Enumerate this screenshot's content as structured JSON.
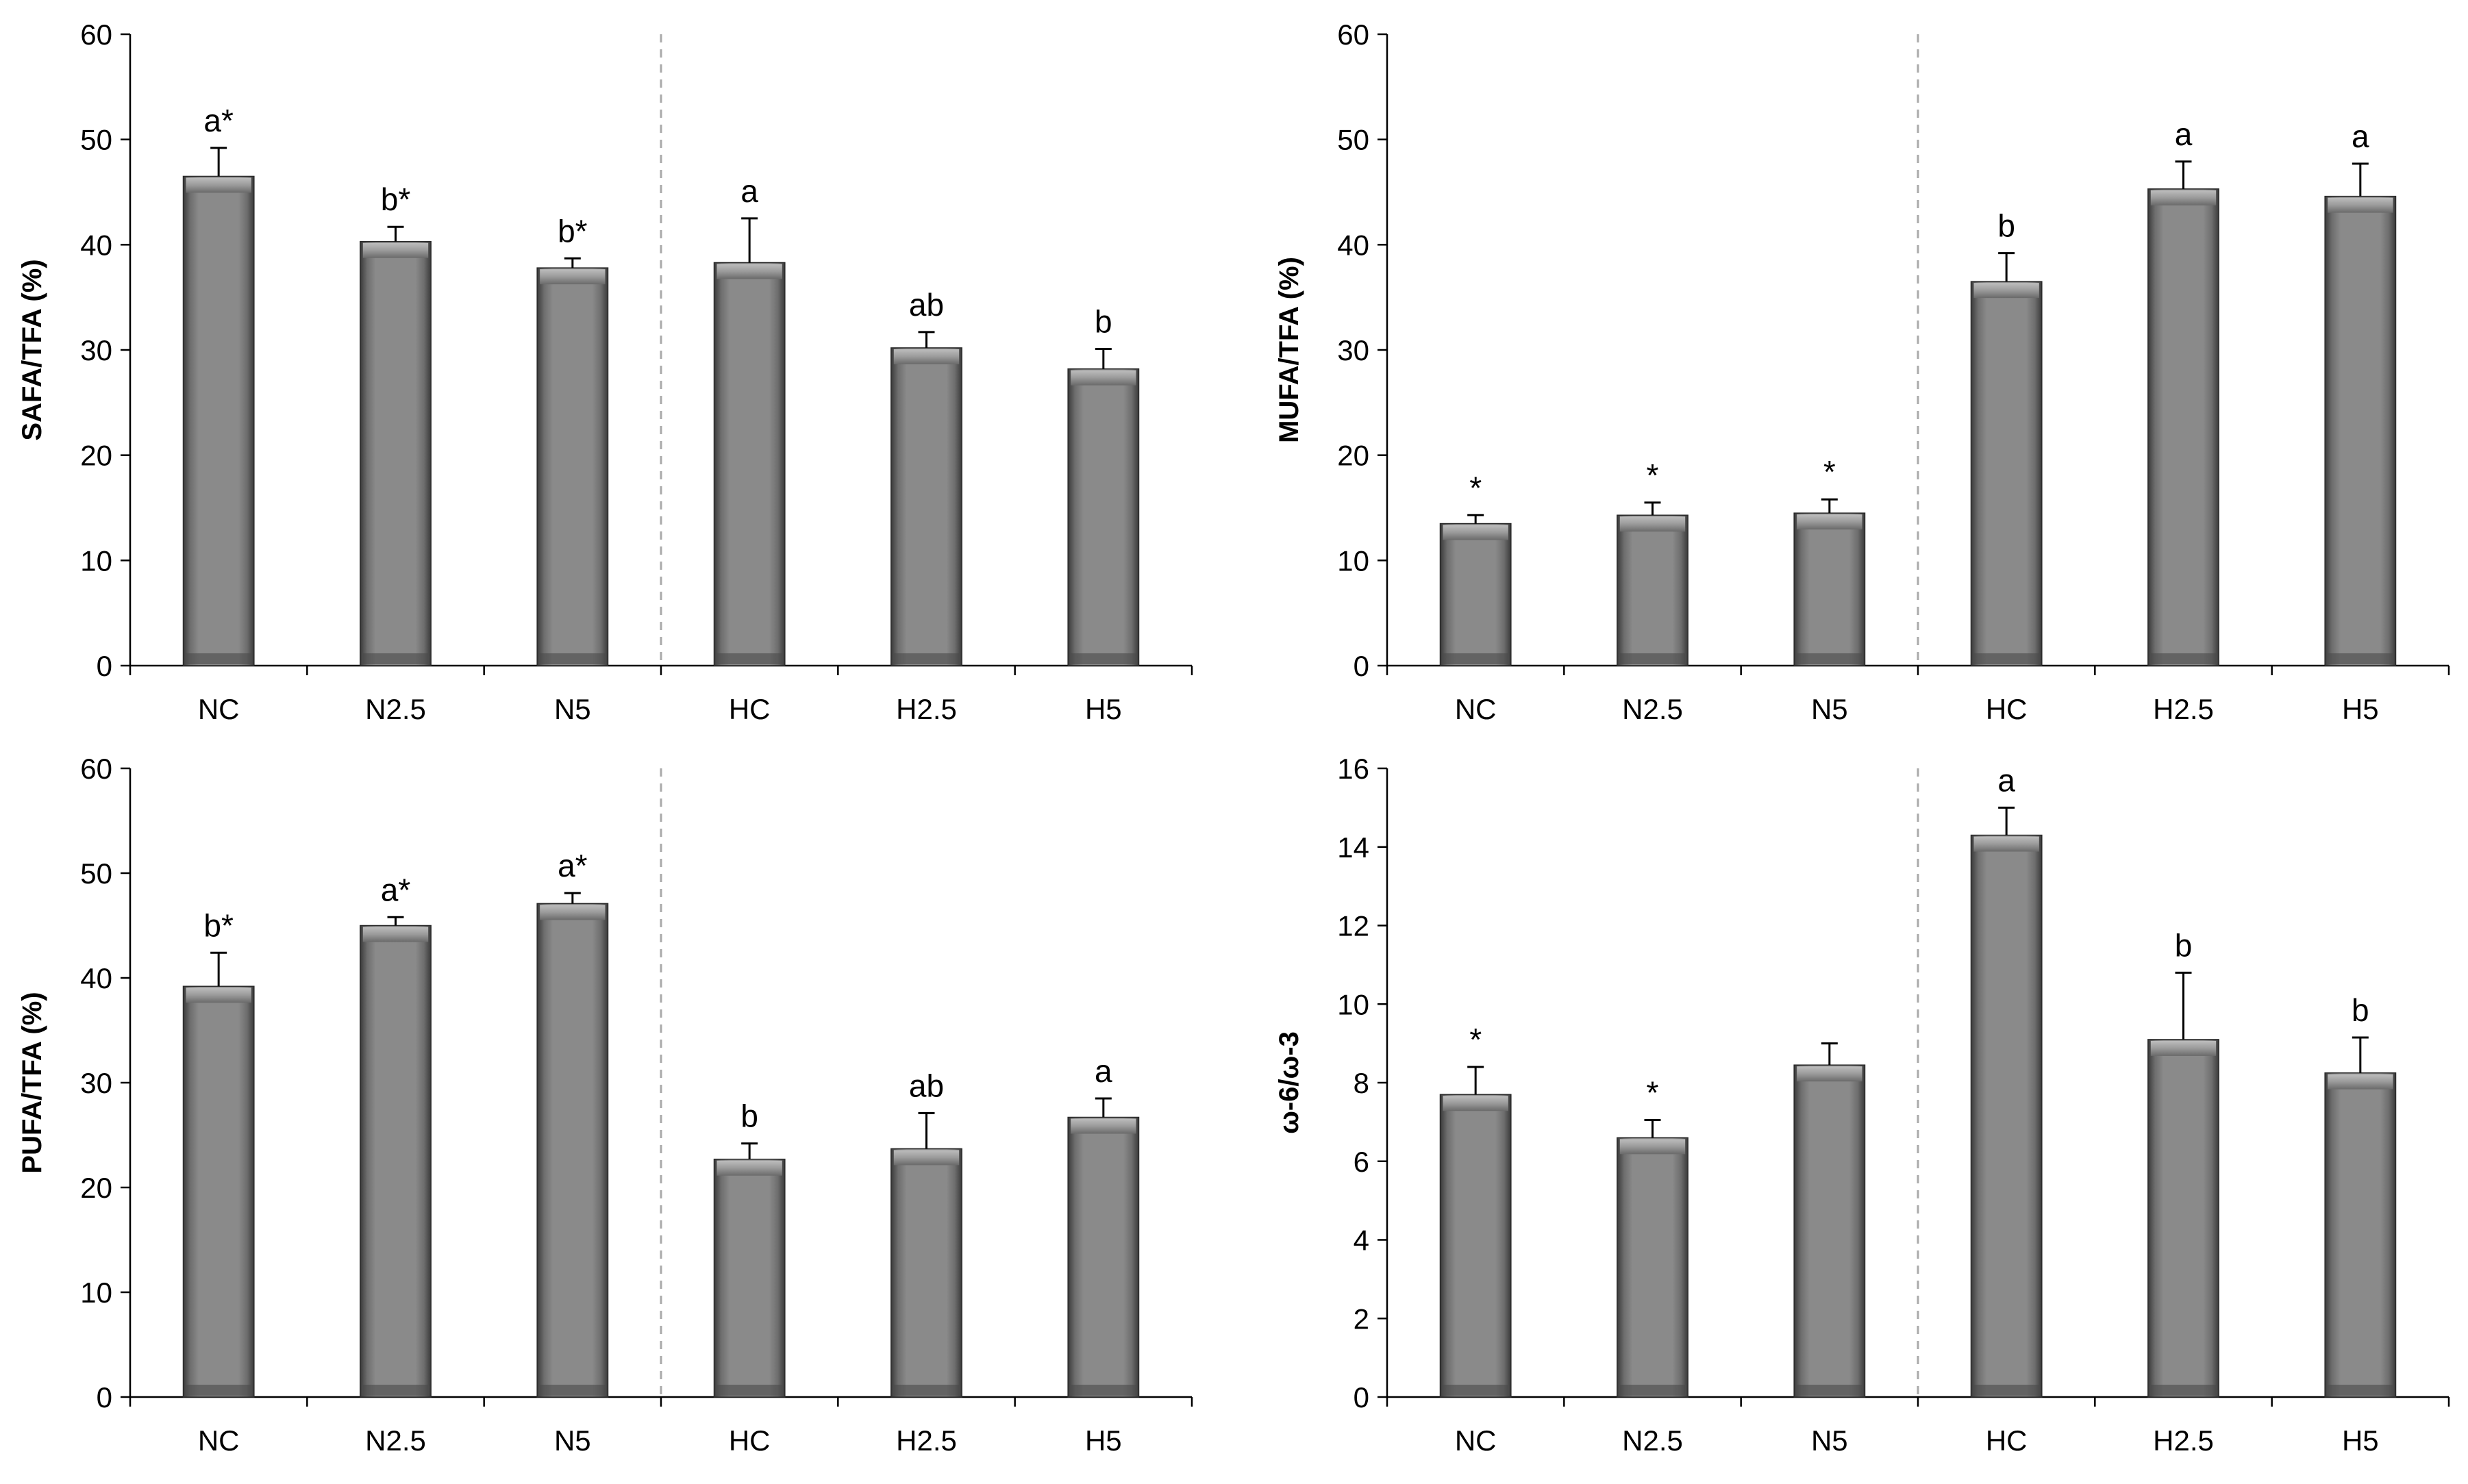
{
  "chart_data": [
    {
      "type": "bar",
      "title": "",
      "xlabel": "",
      "ylabel": "SAFA/TFA (%)",
      "ylim": [
        0,
        60
      ],
      "yticks": [
        0,
        10,
        20,
        30,
        40,
        50,
        60
      ],
      "categories": [
        "NC",
        "N2.5",
        "N5",
        "HC",
        "H2.5",
        "H5"
      ],
      "values": [
        46.5,
        40.3,
        37.8,
        38.3,
        30.2,
        28.2
      ],
      "errors": [
        2.7,
        1.4,
        0.9,
        4.2,
        1.5,
        1.9
      ],
      "labels": [
        "a*",
        "b*",
        "b*",
        "a",
        "ab",
        "b"
      ],
      "group_divider_after": "N5"
    },
    {
      "type": "bar",
      "title": "",
      "xlabel": "",
      "ylabel": "MUFA/TFA (%)",
      "ylim": [
        0,
        60
      ],
      "yticks": [
        0,
        10,
        20,
        30,
        40,
        50,
        60
      ],
      "categories": [
        "NC",
        "N2.5",
        "N5",
        "HC",
        "H2.5",
        "H5"
      ],
      "values": [
        13.5,
        14.3,
        14.5,
        36.5,
        45.3,
        44.6
      ],
      "errors": [
        0.8,
        1.2,
        1.3,
        2.7,
        2.6,
        3.1
      ],
      "labels": [
        "*",
        "*",
        "*",
        "b",
        "a",
        "a"
      ],
      "group_divider_after": "N5"
    },
    {
      "type": "bar",
      "title": "",
      "xlabel": "",
      "ylabel": "PUFA/TFA (%)",
      "ylim": [
        0,
        60
      ],
      "yticks": [
        0,
        10,
        20,
        30,
        40,
        50,
        60
      ],
      "categories": [
        "NC",
        "N2.5",
        "N5",
        "HC",
        "H2.5",
        "H5"
      ],
      "values": [
        39.2,
        45.0,
        47.1,
        22.7,
        23.7,
        26.7
      ],
      "errors": [
        3.2,
        0.8,
        1.0,
        1.5,
        3.4,
        1.8
      ],
      "labels": [
        "b*",
        "a*",
        "a*",
        "b",
        "ab",
        "a"
      ],
      "group_divider_after": "N5"
    },
    {
      "type": "bar",
      "title": "",
      "xlabel": "",
      "ylabel": "ω-6/ω-3",
      "ylim": [
        0,
        16
      ],
      "yticks": [
        0,
        2,
        4,
        6,
        8,
        10,
        12,
        14,
        16
      ],
      "categories": [
        "NC",
        "N2.5",
        "N5",
        "HC",
        "H2.5",
        "H5"
      ],
      "values": [
        7.7,
        6.6,
        8.45,
        14.3,
        9.1,
        8.25
      ],
      "errors": [
        0.7,
        0.45,
        0.55,
        0.7,
        1.7,
        0.9
      ],
      "labels": [
        "*",
        "*",
        "",
        "a",
        "b",
        "b"
      ],
      "group_divider_after": "N5"
    }
  ]
}
